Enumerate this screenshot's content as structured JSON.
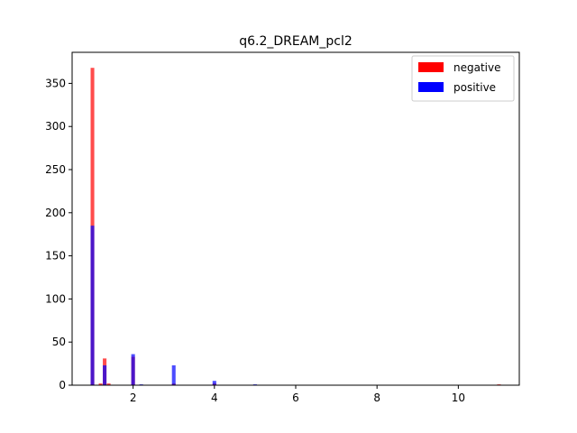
{
  "chart_data": {
    "type": "bar",
    "title": "q6.2_DREAM_pcl2",
    "xlabel": "",
    "ylabel": "",
    "xlim": [
      0.5,
      11.5
    ],
    "ylim": [
      0,
      386
    ],
    "xticks": [
      2,
      4,
      6,
      8,
      10
    ],
    "yticks": [
      0,
      50,
      100,
      150,
      200,
      250,
      300,
      350
    ],
    "bin_width": 0.1,
    "legend": {
      "placement": "top-right"
    },
    "series": [
      {
        "name": "negative",
        "color": "#ff0000",
        "alpha": 0.7,
        "bars": [
          {
            "x": 1.0,
            "y": 368
          },
          {
            "x": 1.2,
            "y": 2
          },
          {
            "x": 1.3,
            "y": 31
          },
          {
            "x": 1.4,
            "y": 2
          },
          {
            "x": 2.0,
            "y": 33
          },
          {
            "x": 3.0,
            "y": 2
          },
          {
            "x": 4.0,
            "y": 2
          },
          {
            "x": 11.0,
            "y": 1
          }
        ]
      },
      {
        "name": "positive",
        "color": "#0000ff",
        "alpha": 0.7,
        "bars": [
          {
            "x": 1.0,
            "y": 185
          },
          {
            "x": 1.3,
            "y": 23
          },
          {
            "x": 2.0,
            "y": 36
          },
          {
            "x": 2.2,
            "y": 1
          },
          {
            "x": 3.0,
            "y": 23
          },
          {
            "x": 4.0,
            "y": 5
          },
          {
            "x": 5.0,
            "y": 1
          }
        ]
      }
    ]
  }
}
